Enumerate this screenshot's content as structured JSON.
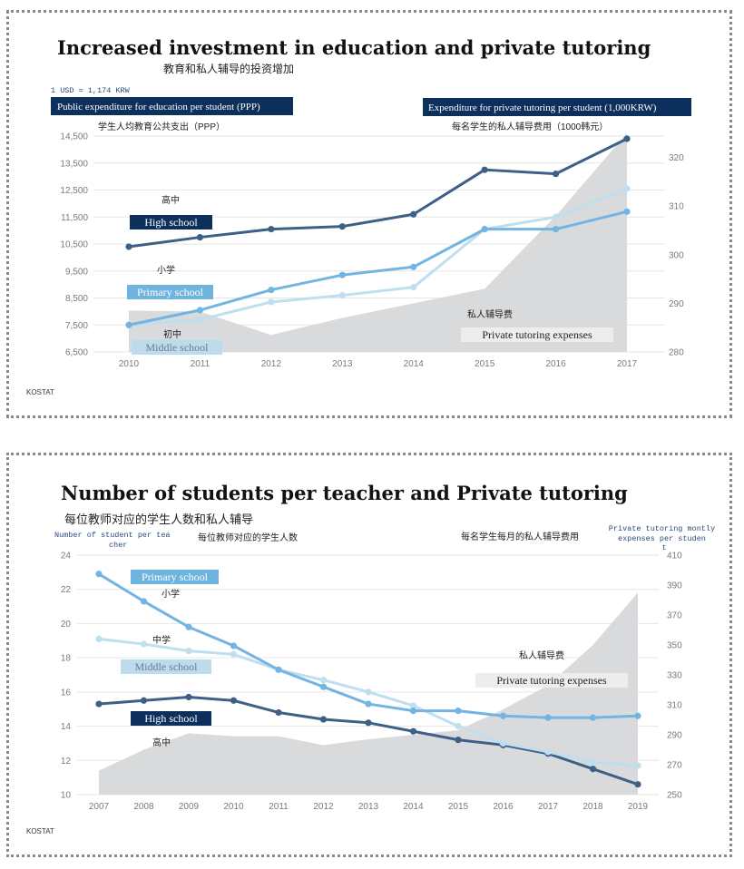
{
  "colors": {
    "high": "#3e5f86",
    "primary": "#72b4e2",
    "middle": "#bfdfee",
    "tutoring_area": "#d9dadc",
    "navy_label": "#0d2f5c",
    "primary_label_bg": "#6fb3df",
    "middle_label_bg": "#bcdcec",
    "tutoring_label_bg": "#ededee"
  },
  "chart_data": [
    {
      "type": "line",
      "title": "Increased investment in education and private tutoring",
      "subtitle": "教育和私人辅导的投资增加",
      "note": "1 USD = 1,174 KRW",
      "left_axis_title": "Public expenditure for education per student (PPP)",
      "left_axis_title_cn": "学生人均教育公共支出（PPP）",
      "right_axis_title": "Expenditure for private tutoring per student (1,000KRW)",
      "right_axis_title_cn": "每名学生的私人辅导费用（1000韩元）",
      "x": [
        "2010",
        "2011",
        "2012",
        "2013",
        "2014",
        "2015",
        "2016",
        "2017"
      ],
      "ylim": [
        6500,
        14500
      ],
      "y_ticks": [
        "6,500",
        "7,500",
        "8,500",
        "9,500",
        "10,500",
        "11,500",
        "12,500",
        "13,500",
        "14,500"
      ],
      "y_tick_values": [
        6500,
        7500,
        8500,
        9500,
        10500,
        11500,
        12500,
        13500,
        14500
      ],
      "y2lim": [
        280,
        324.4
      ],
      "y2_ticks": [
        "280",
        "290",
        "300",
        "310",
        "320"
      ],
      "y2_tick_values": [
        280,
        290,
        300,
        310,
        320
      ],
      "grid": true,
      "series": [
        {
          "key": "high",
          "name": "High school",
          "name_cn": "高中",
          "axis": "left",
          "values": [
            10400,
            10750,
            11050,
            11150,
            11600,
            13250,
            13100,
            14400
          ]
        },
        {
          "key": "primary",
          "name": "Primary school",
          "name_cn": "小学",
          "axis": "left",
          "values": [
            7500,
            8050,
            8800,
            9350,
            9650,
            11050,
            11050,
            11700
          ]
        },
        {
          "key": "middle",
          "name": "Middle school",
          "name_cn": "初中",
          "axis": "left",
          "values": [
            7500,
            7700,
            8350,
            8600,
            8900,
            11050,
            11500,
            12550
          ]
        },
        {
          "key": "tutoring",
          "name": "Private tutoring expenses",
          "name_cn": "私人辅导费",
          "axis": "right",
          "type": "area",
          "values": [
            288.5,
            288.3,
            283.5,
            287,
            290,
            293,
            308,
            325
          ]
        }
      ],
      "source": "KOSTAT"
    },
    {
      "type": "line",
      "title": "Number of students per teacher and Private tutoring",
      "subtitle": "每位教师对应的学生人数和私人辅导",
      "left_axis_title": "Number of student per teacher",
      "left_axis_title_cn": "每位教师对应的学生人数",
      "right_axis_title": "Private tutoring montly expenses per student",
      "right_axis_title_cn": "每名学生每月的私人辅导费用",
      "x": [
        "2007",
        "2008",
        "2009",
        "2010",
        "2011",
        "2012",
        "2013",
        "2014",
        "2015",
        "2016",
        "2017",
        "2018",
        "2019"
      ],
      "ylim": [
        10,
        24
      ],
      "y_ticks": [
        "10",
        "12",
        "14",
        "16",
        "18",
        "20",
        "22",
        "24"
      ],
      "y_tick_values": [
        10,
        12,
        14,
        16,
        18,
        20,
        22,
        24
      ],
      "y2lim": [
        250,
        410
      ],
      "y2_ticks": [
        "250",
        "270",
        "290",
        "310",
        "330",
        "350",
        "370",
        "390",
        "410"
      ],
      "y2_tick_values": [
        250,
        270,
        290,
        310,
        330,
        350,
        370,
        390,
        410
      ],
      "grid": true,
      "series": [
        {
          "key": "primary",
          "name": "Primary school",
          "name_cn": "小学",
          "axis": "left",
          "values": [
            22.9,
            21.3,
            19.8,
            18.7,
            17.3,
            16.3,
            15.3,
            14.9,
            14.9,
            14.6,
            14.5,
            14.5,
            14.6
          ]
        },
        {
          "key": "middle",
          "name": "Middle school",
          "name_cn": "中学",
          "axis": "left",
          "values": [
            19.1,
            18.8,
            18.4,
            18.2,
            17.3,
            16.7,
            16.0,
            15.2,
            14.0,
            13.0,
            12.5,
            11.9,
            11.7
          ]
        },
        {
          "key": "high",
          "name": "High school",
          "name_cn": "高中",
          "axis": "left",
          "values": [
            15.3,
            15.5,
            15.7,
            15.5,
            14.8,
            14.4,
            14.2,
            13.7,
            13.2,
            12.9,
            12.4,
            11.5,
            10.6
          ]
        },
        {
          "key": "tutoring",
          "name": "Private tutoring expenses",
          "name_cn": "私人辅导费",
          "axis": "right",
          "type": "area",
          "values": [
            266,
            280,
            291,
            289,
            289,
            283,
            287,
            290,
            293,
            307,
            323,
            350,
            385
          ]
        }
      ],
      "source": "KOSTAT"
    }
  ]
}
